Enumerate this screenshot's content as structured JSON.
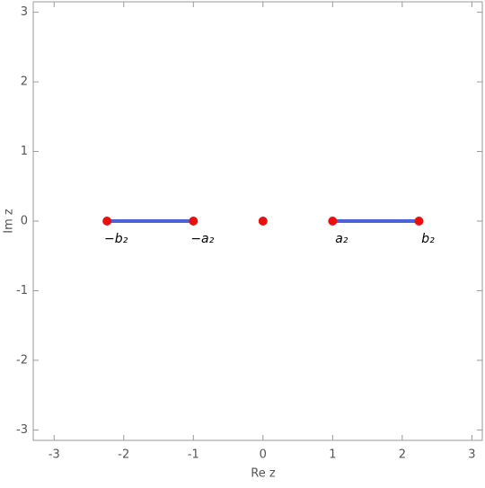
{
  "chart_data": {
    "type": "scatter",
    "xlabel": "Re z",
    "ylabel": "Im z",
    "xlim": [
      -3.3,
      3.15
    ],
    "ylim": [
      -3.15,
      3.15
    ],
    "xticks": [
      -3,
      -2,
      -1,
      0,
      1,
      2,
      3
    ],
    "yticks": [
      -3,
      -2,
      -1,
      0,
      1,
      2,
      3
    ],
    "segments": {
      "color": "#4a63d8",
      "pieces": [
        {
          "x": [
            -2.24,
            -1
          ],
          "y": [
            0,
            0
          ]
        },
        {
          "x": [
            1,
            2.24
          ],
          "y": [
            0,
            0
          ]
        }
      ]
    },
    "points": {
      "color": "#e8100f",
      "x": [
        -2.24,
        -1,
        0,
        1,
        2.24
      ],
      "y": [
        0,
        0,
        0,
        0,
        0
      ],
      "labels": [
        "−b₂",
        "−a₂",
        null,
        "a₂",
        "b₂"
      ]
    }
  }
}
